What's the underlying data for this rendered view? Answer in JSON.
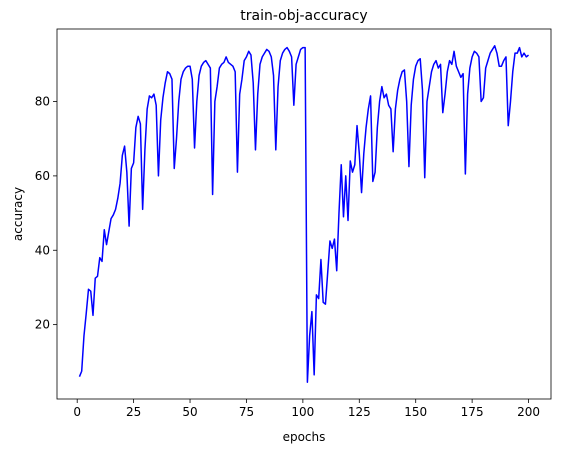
{
  "chart_data": {
    "type": "line",
    "title": "train-obj-accuracy",
    "x_label": "epochs",
    "y_label": "accuracy",
    "x": [
      1,
      2,
      3,
      4,
      5,
      6,
      7,
      8,
      9,
      10,
      11,
      12,
      13,
      14,
      15,
      16,
      17,
      18,
      19,
      20,
      21,
      22,
      23,
      24,
      25,
      26,
      27,
      28,
      29,
      30,
      31,
      32,
      33,
      34,
      35,
      36,
      37,
      38,
      39,
      40,
      41,
      42,
      43,
      44,
      45,
      46,
      47,
      48,
      49,
      50,
      51,
      52,
      53,
      54,
      55,
      56,
      57,
      58,
      59,
      60,
      61,
      62,
      63,
      64,
      65,
      66,
      67,
      68,
      69,
      70,
      71,
      72,
      73,
      74,
      75,
      76,
      77,
      78,
      79,
      80,
      81,
      82,
      83,
      84,
      85,
      86,
      87,
      88,
      89,
      90,
      91,
      92,
      93,
      94,
      95,
      96,
      97,
      98,
      99,
      100,
      101,
      102,
      103,
      104,
      105,
      106,
      107,
      108,
      109,
      110,
      111,
      112,
      113,
      114,
      115,
      116,
      117,
      118,
      119,
      120,
      121,
      122,
      123,
      124,
      125,
      126,
      127,
      128,
      129,
      130,
      131,
      132,
      133,
      134,
      135,
      136,
      137,
      138,
      139,
      140,
      141,
      142,
      143,
      144,
      145,
      146,
      147,
      148,
      149,
      150,
      151,
      152,
      153,
      154,
      155,
      156,
      157,
      158,
      159,
      160,
      161,
      162,
      163,
      164,
      165,
      166,
      167,
      168,
      169,
      170,
      171,
      172,
      173,
      174,
      175,
      176,
      177,
      178,
      179,
      180,
      181,
      182,
      183,
      184,
      185,
      186,
      187,
      188,
      189,
      190,
      191,
      192,
      193,
      194,
      195,
      196,
      197,
      198,
      199,
      200
    ],
    "series": [
      {
        "name": "accuracy",
        "color": "#0000ff",
        "values": [
          6,
          7.5,
          17,
          23,
          29.5,
          29,
          22.5,
          32.5,
          33,
          38,
          37,
          45.5,
          41.5,
          45,
          48.5,
          49.5,
          51,
          54,
          58,
          65.5,
          68,
          61,
          46.5,
          62,
          63.5,
          73,
          76,
          74,
          51,
          67,
          78,
          81.5,
          81,
          82,
          79,
          60,
          75,
          81,
          85,
          88,
          87.5,
          86,
          62,
          70,
          80,
          86,
          88,
          89,
          89.5,
          89.5,
          86,
          67.5,
          80,
          87,
          89.5,
          90.5,
          91,
          90,
          89,
          55,
          80,
          84,
          89,
          90,
          90.5,
          92,
          90.5,
          90,
          89.5,
          88,
          61,
          82,
          86,
          91,
          92,
          93.5,
          92.5,
          85,
          67,
          82,
          90,
          92,
          93,
          94,
          93.5,
          92,
          87,
          67,
          84,
          91,
          93,
          94,
          94.5,
          93.5,
          92,
          79,
          90,
          92,
          94,
          94.5,
          94.5,
          4.5,
          17,
          23.5,
          6.5,
          28,
          27,
          37.5,
          26,
          25.5,
          34,
          42.5,
          40.5,
          43,
          34.5,
          50,
          63,
          49,
          60,
          48,
          64,
          61,
          63,
          73.5,
          66,
          55.5,
          66,
          73,
          78,
          81.5,
          58.5,
          61,
          73,
          80,
          84,
          81,
          82,
          79,
          78,
          66.5,
          78,
          83,
          86,
          88,
          88.5,
          80,
          62.5,
          79,
          86,
          89.5,
          91,
          91.5,
          83,
          59.5,
          80,
          84,
          88,
          90,
          91,
          89,
          90,
          77,
          82,
          88,
          91,
          90,
          93.5,
          89.5,
          88,
          86.5,
          87.5,
          60.5,
          82,
          89,
          92,
          93.5,
          93,
          92,
          80,
          81,
          89,
          91,
          93,
          94,
          95,
          93,
          89.5,
          89.5,
          91,
          92,
          73.5,
          80,
          88,
          93,
          93,
          94.5,
          92,
          93,
          92,
          92.5
        ]
      }
    ],
    "xlim": [
      -8.95,
      209.95
    ],
    "ylim": [
      0,
      99.5
    ],
    "xticks": [
      0,
      25,
      50,
      75,
      100,
      125,
      150,
      175,
      200
    ],
    "yticks": [
      20,
      40,
      60,
      80
    ]
  }
}
